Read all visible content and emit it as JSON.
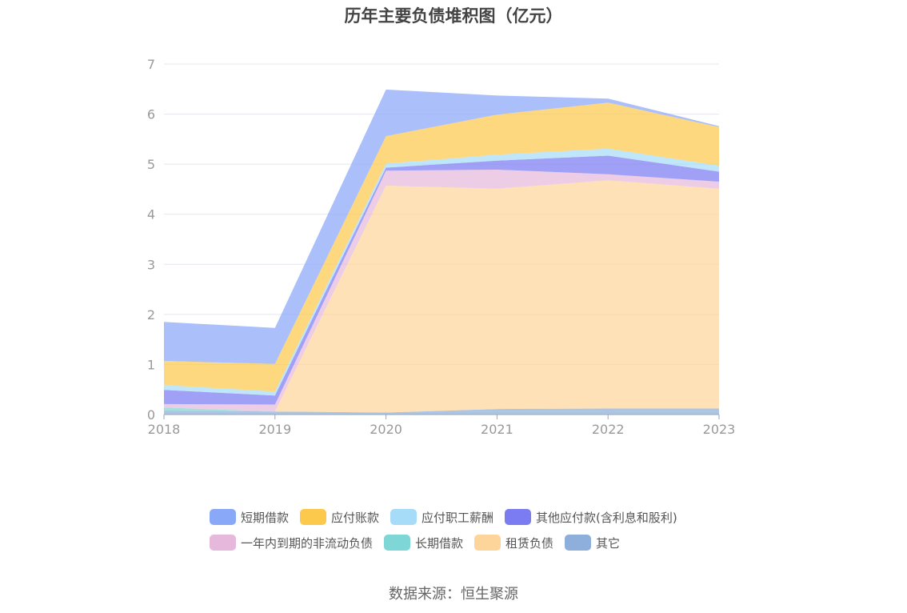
{
  "chart_data": {
    "type": "area",
    "stacked": true,
    "title": "历年主要负债堆积图（亿元）",
    "x": [
      "2018",
      "2019",
      "2020",
      "2021",
      "2022",
      "2023"
    ],
    "ylim": [
      0,
      7
    ],
    "yticks": [
      "0",
      "1",
      "2",
      "3",
      "4",
      "5",
      "6",
      "7"
    ],
    "grid": true,
    "legend_position": "bottom",
    "series": [
      {
        "name": "短期借款",
        "color": "#8aa8f8",
        "values": [
          0.78,
          0.72,
          0.93,
          0.38,
          0.08,
          0.02
        ]
      },
      {
        "name": "应付账款",
        "color": "#fcc94d",
        "values": [
          0.48,
          0.55,
          0.55,
          0.8,
          0.92,
          0.77
        ]
      },
      {
        "name": "应付职工薪酬",
        "color": "#a6dcf7",
        "values": [
          0.1,
          0.08,
          0.08,
          0.12,
          0.14,
          0.12
        ]
      },
      {
        "name": "其他应付款(含利息和股利)",
        "color": "#7b7cf2",
        "values": [
          0.28,
          0.18,
          0.06,
          0.18,
          0.37,
          0.2
        ]
      },
      {
        "name": "一年内到期的非流动负债",
        "color": "#e6b9dc",
        "values": [
          0.07,
          0.14,
          0.3,
          0.38,
          0.12,
          0.14
        ]
      },
      {
        "name": "长期借款",
        "color": "#7fd6d6",
        "values": [
          0.06,
          0.0,
          0.0,
          0.0,
          0.0,
          0.0
        ]
      },
      {
        "name": "租赁负债",
        "color": "#fdd59a",
        "values": [
          0.0,
          0.0,
          4.53,
          4.4,
          4.56,
          4.39
        ]
      },
      {
        "name": "其它",
        "color": "#8eaedb",
        "values": [
          0.08,
          0.06,
          0.04,
          0.11,
          0.12,
          0.12
        ]
      }
    ]
  },
  "source_text": "数据来源：恒生聚源"
}
